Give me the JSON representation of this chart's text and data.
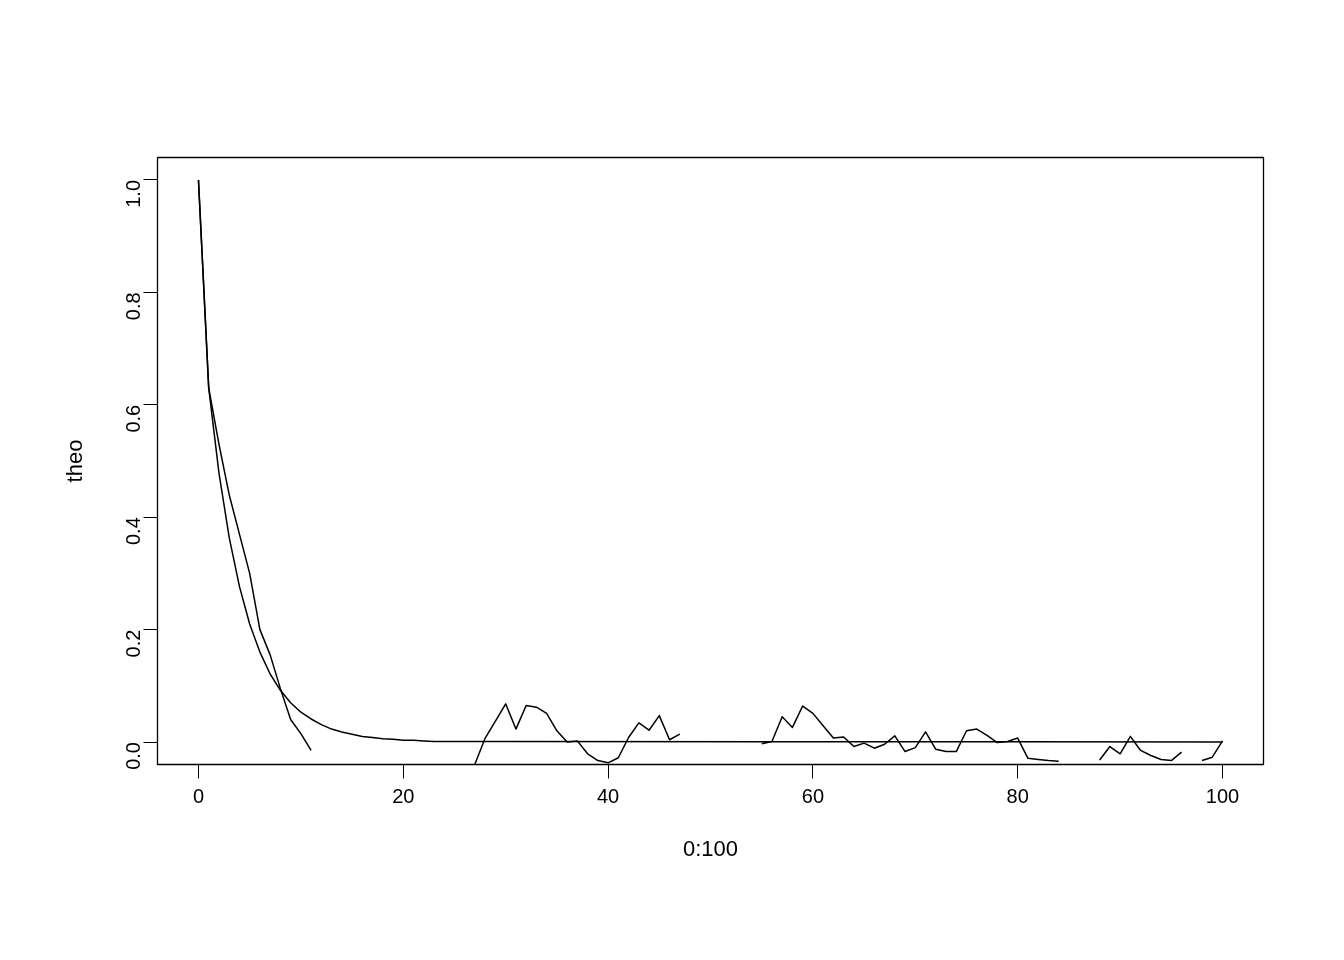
{
  "chart_data": {
    "type": "line",
    "xlabel": "0:100",
    "ylabel": "theo",
    "xlim": [
      -4,
      104
    ],
    "ylim": [
      -0.04,
      1.04
    ],
    "xticks": [
      0,
      20,
      40,
      60,
      80,
      100
    ],
    "yticks": [
      {
        "value": 0,
        "label": "0.0"
      },
      0.2,
      0.4,
      0.6,
      0.8,
      {
        "value": 1,
        "label": "1.0"
      }
    ],
    "grid": false,
    "marker": "none",
    "line_style": "solid",
    "series": [
      {
        "color": "#000000",
        "x": [
          0,
          1,
          2,
          3,
          4,
          5,
          6,
          7,
          8,
          9,
          10,
          11,
          12,
          13,
          14,
          15,
          16,
          17,
          18,
          19,
          20,
          21,
          22,
          23,
          24,
          25,
          100
        ],
        "values": [
          1.0,
          0.63,
          0.479,
          0.364,
          0.277,
          0.21,
          0.16,
          0.121,
          0.092,
          0.07,
          0.053,
          0.041,
          0.031,
          0.023,
          0.018,
          0.014,
          0.01,
          0.008,
          0.006,
          0.005,
          0.003,
          0.003,
          0.002,
          0.001,
          0.001,
          0.001,
          0.0
        ]
      },
      {
        "color": "#000000",
        "x": [
          0,
          1,
          2,
          3,
          4,
          5,
          6,
          7,
          8,
          9,
          10,
          11,
          12,
          13,
          14,
          15,
          16,
          17,
          18,
          19,
          20,
          21,
          22,
          23,
          24,
          25,
          26,
          27,
          28,
          29,
          30,
          31,
          32,
          33,
          34,
          35,
          36,
          37,
          38,
          39,
          40,
          41,
          42,
          43,
          44,
          45,
          46,
          47,
          48,
          49,
          50,
          51,
          52,
          53,
          54,
          55,
          56,
          57,
          58,
          59,
          60,
          61,
          62,
          63,
          64,
          65,
          66,
          67,
          68,
          69,
          70,
          71,
          72,
          73,
          74,
          75,
          76,
          77,
          78,
          79,
          80,
          81,
          82,
          83,
          84,
          85,
          86,
          87,
          88,
          89,
          90,
          91,
          92,
          93,
          94,
          95,
          96,
          97,
          98,
          99,
          100
        ],
        "values": [
          1.0,
          0.63,
          0.53,
          0.44,
          0.37,
          0.3,
          0.2,
          0.155,
          0.095,
          0.04,
          0.015,
          -0.015,
          null,
          null,
          null,
          null,
          null,
          null,
          null,
          null,
          null,
          null,
          null,
          null,
          null,
          null,
          null,
          -0.039,
          0.007,
          0.037,
          0.068,
          0.023,
          0.065,
          0.062,
          0.051,
          0.02,
          0.0,
          0.002,
          -0.021,
          -0.033,
          -0.037,
          -0.028,
          0.008,
          0.034,
          0.021,
          0.047,
          0.004,
          0.014,
          null,
          null,
          null,
          null,
          null,
          null,
          null,
          -0.003,
          0.001,
          0.045,
          0.026,
          0.064,
          0.051,
          0.029,
          0.007,
          0.009,
          -0.008,
          -0.002,
          -0.011,
          -0.004,
          0.011,
          -0.017,
          -0.01,
          0.018,
          -0.013,
          -0.017,
          -0.017,
          0.02,
          0.023,
          0.012,
          -0.001,
          0.001,
          0.007,
          -0.029,
          -0.031,
          -0.033,
          -0.034,
          null,
          null,
          null,
          -0.032,
          -0.008,
          -0.021,
          0.01,
          -0.015,
          -0.024,
          -0.031,
          -0.033,
          -0.018,
          null,
          -0.033,
          -0.027,
          0.002
        ]
      }
    ]
  }
}
